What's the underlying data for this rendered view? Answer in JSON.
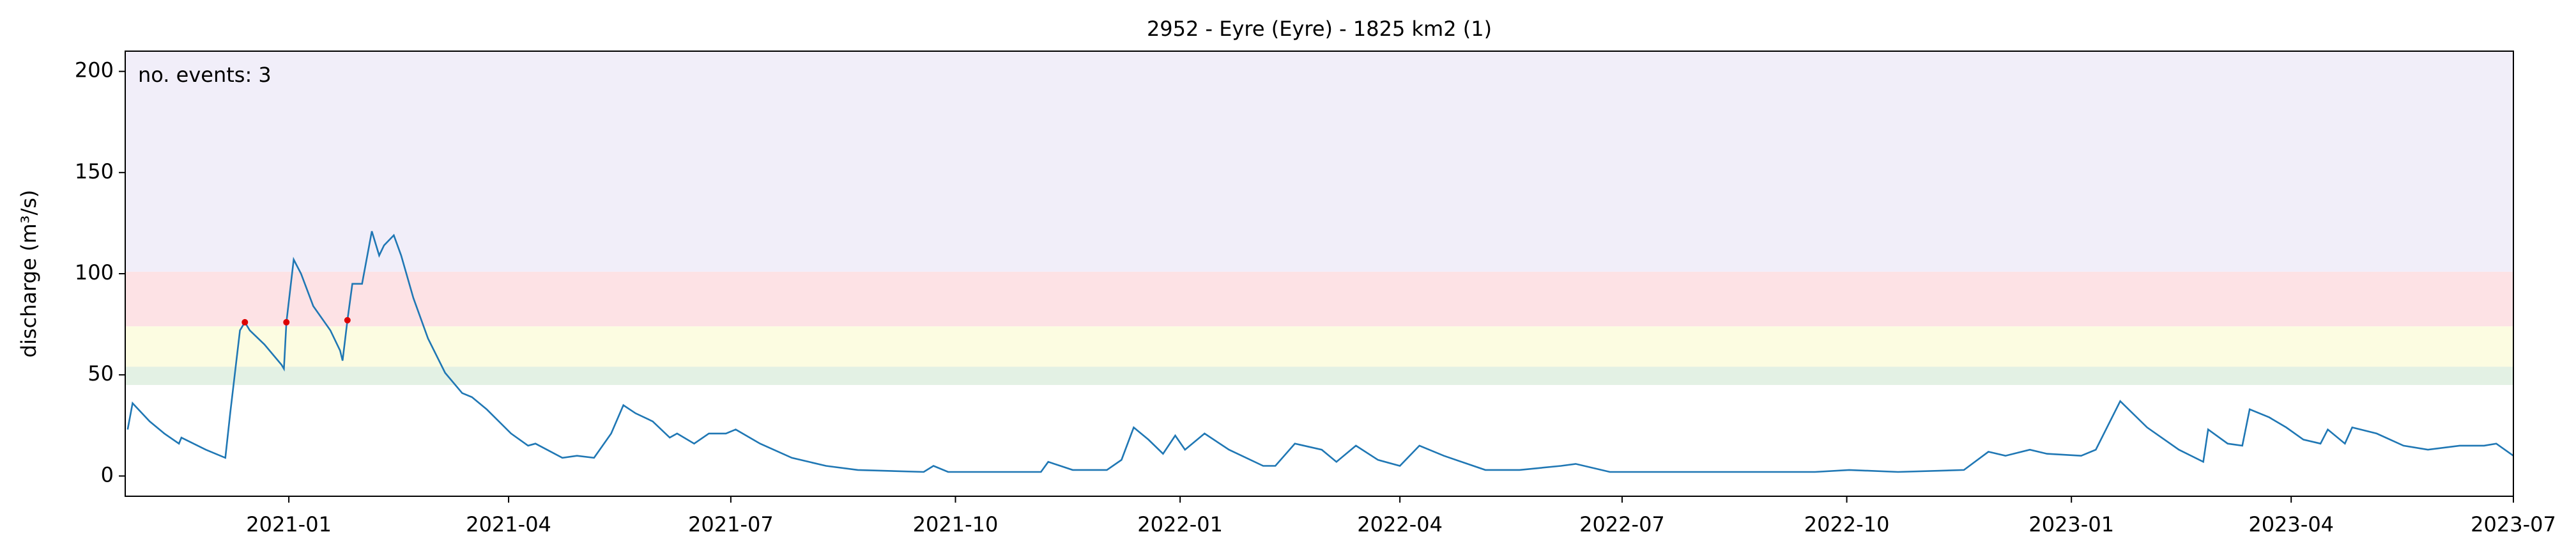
{
  "chart_data": {
    "type": "line",
    "title": "2952 - Eyre (Eyre) - 1825 km2 (1)",
    "y_label": "discharge (m³/s)",
    "annotation": {
      "text": "no. events: 3",
      "color": "#dd0000"
    },
    "xlim": [
      "2020-10-26",
      "2023-07-01"
    ],
    "xticks": [
      "2021-01",
      "2021-04",
      "2021-07",
      "2021-10",
      "2022-01",
      "2022-04",
      "2022-07",
      "2022-10",
      "2023-01",
      "2023-04",
      "2023-07"
    ],
    "ylim": [
      -10,
      210
    ],
    "yticks": [
      0,
      50,
      100,
      150,
      200
    ],
    "bands": [
      {
        "range": [
          45,
          54
        ],
        "color": "#e3f1e4"
      },
      {
        "range": [
          54,
          74
        ],
        "color": "#fcfce1"
      },
      {
        "range": [
          74,
          101
        ],
        "color": "#fde2e5"
      },
      {
        "range": [
          101,
          210
        ],
        "color": "#f1eef9"
      }
    ],
    "x": [
      "2020-10-27",
      "2020-10-29",
      "2020-11-05",
      "2020-11-11",
      "2020-11-17",
      "2020-11-18",
      "2020-11-28",
      "2020-12-06",
      "2020-12-08",
      "2020-12-12",
      "2020-12-14",
      "2020-12-16",
      "2020-12-22",
      "2020-12-29",
      "2020-12-30",
      "2020-12-31",
      "2021-01-03",
      "2021-01-06",
      "2021-01-11",
      "2021-01-18",
      "2021-01-22",
      "2021-01-23",
      "2021-01-25",
      "2021-01-27",
      "2021-01-31",
      "2021-02-04",
      "2021-02-07",
      "2021-02-09",
      "2021-02-13",
      "2021-02-16",
      "2021-02-21",
      "2021-02-27",
      "2021-03-06",
      "2021-03-13",
      "2021-03-17",
      "2021-03-23",
      "2021-04-02",
      "2021-04-09",
      "2021-04-12",
      "2021-04-23",
      "2021-04-29",
      "2021-05-06",
      "2021-05-13",
      "2021-05-18",
      "2021-05-23",
      "2021-05-30",
      "2021-06-06",
      "2021-06-09",
      "2021-06-16",
      "2021-06-22",
      "2021-06-29",
      "2021-07-03",
      "2021-07-13",
      "2021-07-26",
      "2021-08-09",
      "2021-08-22",
      "2021-09-18",
      "2021-09-22",
      "2021-09-28",
      "2021-10-15",
      "2021-11-05",
      "2021-11-08",
      "2021-11-18",
      "2021-12-02",
      "2021-12-08",
      "2021-12-13",
      "2021-12-19",
      "2021-12-25",
      "2021-12-30",
      "2022-01-03",
      "2022-01-11",
      "2022-01-21",
      "2022-02-04",
      "2022-02-09",
      "2022-02-17",
      "2022-02-28",
      "2022-03-06",
      "2022-03-14",
      "2022-03-23",
      "2022-04-01",
      "2022-04-09",
      "2022-04-19",
      "2022-05-06",
      "2022-05-20",
      "2022-06-06",
      "2022-06-12",
      "2022-06-26",
      "2022-07-13",
      "2022-09-18",
      "2022-10-02",
      "2022-10-22",
      "2022-11-18",
      "2022-11-28",
      "2022-12-05",
      "2022-12-15",
      "2022-12-22",
      "2023-01-05",
      "2023-01-11",
      "2023-01-21",
      "2023-02-01",
      "2023-02-14",
      "2023-02-24",
      "2023-02-26",
      "2023-03-06",
      "2023-03-12",
      "2023-03-15",
      "2023-03-23",
      "2023-03-30",
      "2023-04-06",
      "2023-04-13",
      "2023-04-16",
      "2023-04-23",
      "2023-04-26",
      "2023-05-06",
      "2023-05-17",
      "2023-05-27",
      "2023-06-09",
      "2023-06-19",
      "2023-06-24",
      "2023-07-01"
    ],
    "series": [
      {
        "color": "#1f77b4",
        "values": [
          23,
          36,
          27,
          21,
          16,
          19,
          13,
          9,
          31,
          72,
          76,
          72,
          65,
          55,
          53,
          76,
          107,
          100,
          84,
          72,
          62,
          57,
          77,
          95,
          95,
          121,
          109,
          114,
          119,
          109,
          88,
          68,
          51,
          41,
          39,
          33,
          21,
          15,
          16,
          9,
          10,
          9,
          21,
          35,
          31,
          27,
          19,
          21,
          16,
          21,
          21,
          23,
          16,
          9,
          5,
          3,
          2,
          5,
          2,
          2,
          2,
          7,
          3,
          3,
          8,
          24,
          18,
          11,
          20,
          13,
          21,
          13,
          5,
          5,
          16,
          13,
          7,
          15,
          8,
          5,
          15,
          10,
          3,
          3,
          5,
          6,
          2,
          2,
          2,
          3,
          2,
          3,
          12,
          10,
          13,
          11,
          10,
          13,
          37,
          24,
          13,
          7,
          23,
          16,
          15,
          33,
          29,
          24,
          18,
          16,
          23,
          16,
          24,
          21,
          15,
          13,
          15,
          15,
          16,
          10
        ]
      }
    ],
    "events": {
      "color": "#dd0000",
      "x": [
        "2020-12-14",
        "2020-12-31",
        "2021-01-25"
      ],
      "values": [
        76,
        76,
        77
      ]
    }
  }
}
